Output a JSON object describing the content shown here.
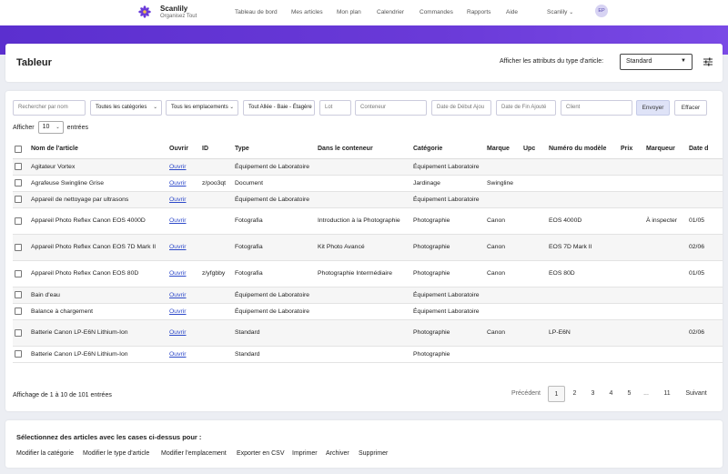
{
  "brand": {
    "name": "Scanlily",
    "tagline": "Organisez Tout",
    "accent": "#6a3ad8"
  },
  "nav": {
    "links": [
      "Tableau de bord",
      "Mes articles",
      "Mon plan",
      "Calendrier",
      "Commandes",
      "Rapports",
      "Aide"
    ],
    "switcher": "Scanlily",
    "avatar": "EP"
  },
  "header": {
    "title": "Tableur",
    "attr_label": "Afficher les attributs du type d'article:",
    "attr_value": "Standard"
  },
  "filters": {
    "search_placeholder": "Rechercher par nom",
    "category": "Toutes les catégories",
    "location": "Tous les emplacements",
    "hierarchy": "Tout Allée - Baie - Étagère",
    "lot_placeholder": "Lot",
    "container_placeholder": "Conteneur",
    "start_date_placeholder": "Date de Début Ajou",
    "end_date_placeholder": "Date de Fin Ajouté",
    "client_placeholder": "Client",
    "send_label": "Envoyer",
    "clear_label": "Effacer"
  },
  "show": {
    "prefix": "Afficher",
    "value": "10",
    "suffix": "entrées"
  },
  "table": {
    "columns": [
      "Nom de l'article",
      "Ouvrir",
      "ID",
      "Type",
      "Dans le conteneur",
      "Catégorie",
      "Marque",
      "Upc",
      "Numéro du modèle",
      "Prix",
      "Marqueur",
      "Date d"
    ],
    "open_label": "Ouvrir",
    "rows": [
      {
        "name": "Agitateur Vortex",
        "id": "",
        "type": "Équipement de Laboratoire",
        "container": "",
        "category": "Équipement Laboratoire",
        "brand": "",
        "upc": "",
        "model": "",
        "price": "",
        "marker": "",
        "date": ""
      },
      {
        "name": "Agrafeuse Swingline Grise",
        "id": "z/poo3qt",
        "type": "Document",
        "container": "",
        "category": "Jardinage",
        "brand": "Swingline",
        "upc": "",
        "model": "",
        "price": "",
        "marker": "",
        "date": ""
      },
      {
        "name": "Appareil de nettoyage par ultrasons",
        "id": "",
        "type": "Équipement de Laboratoire",
        "container": "",
        "category": "Équipement Laboratoire",
        "brand": "",
        "upc": "",
        "model": "",
        "price": "",
        "marker": "",
        "date": ""
      },
      {
        "name": "Appareil Photo Reflex Canon EOS 4000D",
        "id": "",
        "type": "Fotografia",
        "container": "Introduction à la Photographie",
        "category": "Photographie",
        "brand": "Canon",
        "upc": "",
        "model": "EOS 4000D",
        "price": "",
        "marker": "À inspecter",
        "date": "01/05"
      },
      {
        "name": "Appareil Photo Reflex Canon EOS 7D Mark II",
        "id": "",
        "type": "Fotografia",
        "container": "Kit Photo Avancé",
        "category": "Photographie",
        "brand": "Canon",
        "upc": "",
        "model": "EOS 7D Mark II",
        "price": "",
        "marker": "",
        "date": "02/06"
      },
      {
        "name": "Appareil Photo Reflex Canon EOS 80D",
        "id": "z/yfgbby",
        "type": "Fotografia",
        "container": "Photographie Intermédiaire",
        "category": "Photographie",
        "brand": "Canon",
        "upc": "",
        "model": "EOS 80D",
        "price": "",
        "marker": "",
        "date": "01/05"
      },
      {
        "name": "Bain d'eau",
        "id": "",
        "type": "Équipement de Laboratoire",
        "container": "",
        "category": "Équipement Laboratoire",
        "brand": "",
        "upc": "",
        "model": "",
        "price": "",
        "marker": "",
        "date": ""
      },
      {
        "name": "Balance à chargement",
        "id": "",
        "type": "Équipement de Laboratoire",
        "container": "",
        "category": "Équipement Laboratoire",
        "brand": "",
        "upc": "",
        "model": "",
        "price": "",
        "marker": "",
        "date": ""
      },
      {
        "name": "Batterie Canon LP-E6N Lithium-Ion",
        "id": "",
        "type": "Standard",
        "container": "",
        "category": "Photographie",
        "brand": "Canon",
        "upc": "",
        "model": "LP-E6N",
        "price": "",
        "marker": "",
        "date": "02/06"
      },
      {
        "name": "Batterie Canon LP-E6N Lithium-Ion",
        "id": "",
        "type": "Standard",
        "container": "",
        "category": "Photographie",
        "brand": "",
        "upc": "",
        "model": "",
        "price": "",
        "marker": "",
        "date": ""
      }
    ]
  },
  "pagination": {
    "info": "Affichage de 1 à 10 de 101 entrées",
    "prev": "Précédent",
    "pages": [
      "1",
      "2",
      "3",
      "4",
      "5",
      "...",
      "11"
    ],
    "next": "Suivant"
  },
  "bulk": {
    "title": "Sélectionnez des articles avec les cases ci-dessus pour :",
    "actions": [
      "Modifier la catégorie",
      "Modifier le type d'article",
      "Modifier l'emplacement",
      "Exporter en CSV",
      "Imprimer",
      "Archiver",
      "Supprimer"
    ]
  }
}
